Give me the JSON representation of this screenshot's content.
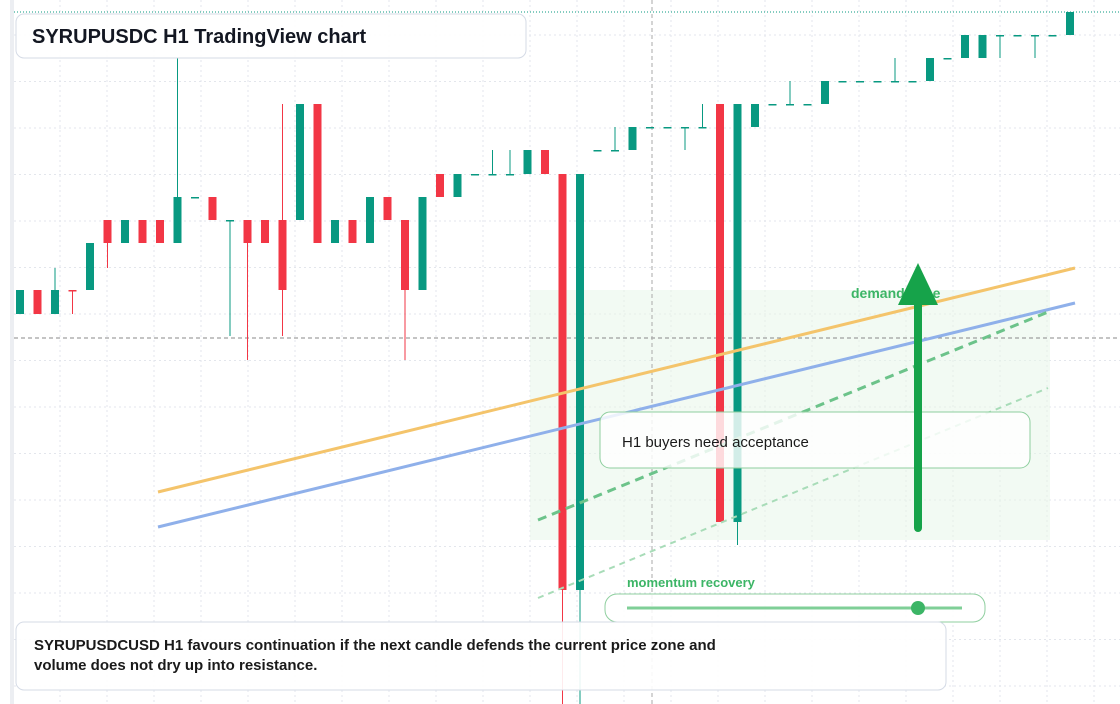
{
  "chart_data": {
    "type": "candlestick",
    "title": "SYRUPUSDC H1 TradingView chart",
    "annotations": {
      "zone": "demand zone",
      "acceptance": "H1 buyers need acceptance",
      "momentum": "momentum recovery",
      "summary": "SYRUPUSDCUSD H1 favours continuation if the next candle defends the current price zone and volume does not dry up into resistance."
    },
    "ylim": [
      0,
      704
    ],
    "up_color": "#089981",
    "down_color": "#f23645",
    "open": [
      390,
      414,
      390,
      414,
      414,
      484,
      461,
      484,
      484,
      461,
      507,
      507,
      484,
      484,
      484,
      484,
      484,
      600,
      461,
      484,
      461,
      507,
      484,
      414,
      530,
      507,
      530,
      530,
      530,
      530,
      554,
      530,
      114,
      554,
      554,
      554,
      577,
      577,
      577,
      577,
      600,
      182,
      577,
      600,
      600,
      600,
      600,
      623,
      623,
      623,
      623,
      623,
      623,
      646,
      646,
      646,
      669,
      669,
      669,
      669,
      669
    ],
    "high": [
      414,
      414,
      436,
      414,
      461,
      484,
      484,
      484,
      484,
      646,
      507,
      507,
      484,
      484,
      484,
      600,
      600,
      600,
      484,
      484,
      507,
      507,
      484,
      507,
      530,
      530,
      530,
      554,
      554,
      554,
      554,
      530,
      530,
      554,
      577,
      577,
      577,
      577,
      577,
      600,
      600,
      600,
      600,
      600,
      623,
      600,
      623,
      623,
      623,
      623,
      646,
      623,
      646,
      646,
      669,
      669,
      669,
      669,
      669,
      669,
      692
    ],
    "low": [
      390,
      390,
      390,
      390,
      414,
      436,
      461,
      461,
      461,
      461,
      507,
      484,
      368,
      344,
      461,
      368,
      484,
      461,
      461,
      461,
      461,
      484,
      344,
      414,
      507,
      507,
      530,
      530,
      530,
      530,
      530,
      0,
      0,
      554,
      554,
      554,
      577,
      577,
      554,
      577,
      182,
      159,
      577,
      600,
      600,
      600,
      600,
      623,
      623,
      623,
      623,
      623,
      623,
      646,
      646,
      646,
      646,
      669,
      646,
      669,
      669
    ],
    "close": [
      414,
      390,
      414,
      413,
      461,
      461,
      484,
      461,
      461,
      507,
      507,
      484,
      484,
      461,
      461,
      414,
      600,
      461,
      484,
      461,
      507,
      484,
      414,
      507,
      507,
      530,
      530,
      530,
      530,
      554,
      530,
      114,
      530,
      554,
      554,
      577,
      577,
      577,
      577,
      577,
      182,
      600,
      600,
      600,
      600,
      600,
      623,
      623,
      623,
      623,
      623,
      623,
      646,
      646,
      669,
      669,
      669,
      669,
      669,
      669,
      692
    ]
  }
}
